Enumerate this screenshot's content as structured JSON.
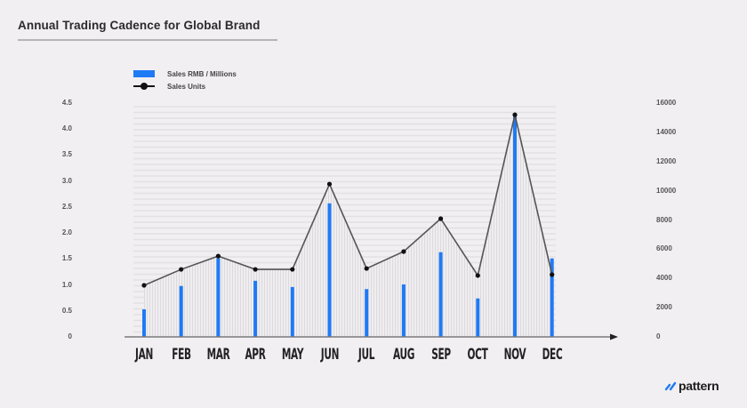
{
  "title": "Annual Trading Cadence for Global Brand",
  "legend": {
    "bar_label": "Sales RMB / Millions",
    "line_label": "Sales Units"
  },
  "axes": {
    "left_ticks": [
      "4.5",
      "4.0",
      "3.5",
      "3.0",
      "2.5",
      "2.0",
      "1.5",
      "1.0",
      "0.5",
      "0"
    ],
    "right_ticks": [
      "16000",
      "14000",
      "12000",
      "10000",
      "8000",
      "6000",
      "4000",
      "2000",
      "0"
    ]
  },
  "months": [
    "JAN",
    "FEB",
    "MAR",
    "APR",
    "MAY",
    "JUN",
    "JUL",
    "AUG",
    "SEP",
    "OCT",
    "NOV",
    "DEC"
  ],
  "logo": {
    "text": "pattern"
  },
  "colors": {
    "bar": "#1f7af5",
    "line": "#555555",
    "point": "#111111",
    "background": "#f1eff1"
  },
  "chart_data": {
    "type": "bar",
    "title": "Annual Trading Cadence for Global Brand",
    "categories": [
      "JAN",
      "FEB",
      "MAR",
      "APR",
      "MAY",
      "JUN",
      "JUL",
      "AUG",
      "SEP",
      "OCT",
      "NOV",
      "DEC"
    ],
    "series": [
      {
        "name": "Sales RMB / Millions",
        "type": "bar",
        "axis": "left",
        "values": [
          0.53,
          0.98,
          1.51,
          1.08,
          0.96,
          2.57,
          0.92,
          1.01,
          1.63,
          0.74,
          4.24,
          1.51
        ]
      },
      {
        "name": "Sales Units",
        "type": "line",
        "axis": "right",
        "values": [
          3530,
          4620,
          5530,
          4620,
          4620,
          10460,
          4680,
          5840,
          8090,
          4200,
          15200,
          4260
        ]
      }
    ],
    "xlabel": "",
    "ylabel": "Sales RMB / Millions",
    "ylabel_right": "Sales Units",
    "ylim": [
      0,
      4.5
    ],
    "ylim_right": [
      0,
      16000
    ],
    "left_ticks": [
      0,
      0.5,
      1.0,
      1.5,
      2.0,
      2.5,
      3.0,
      3.5,
      4.0,
      4.5
    ],
    "right_ticks": [
      0,
      2000,
      4000,
      6000,
      8000,
      10000,
      12000,
      14000,
      16000
    ],
    "grid": true,
    "legend_position": "top-left"
  }
}
